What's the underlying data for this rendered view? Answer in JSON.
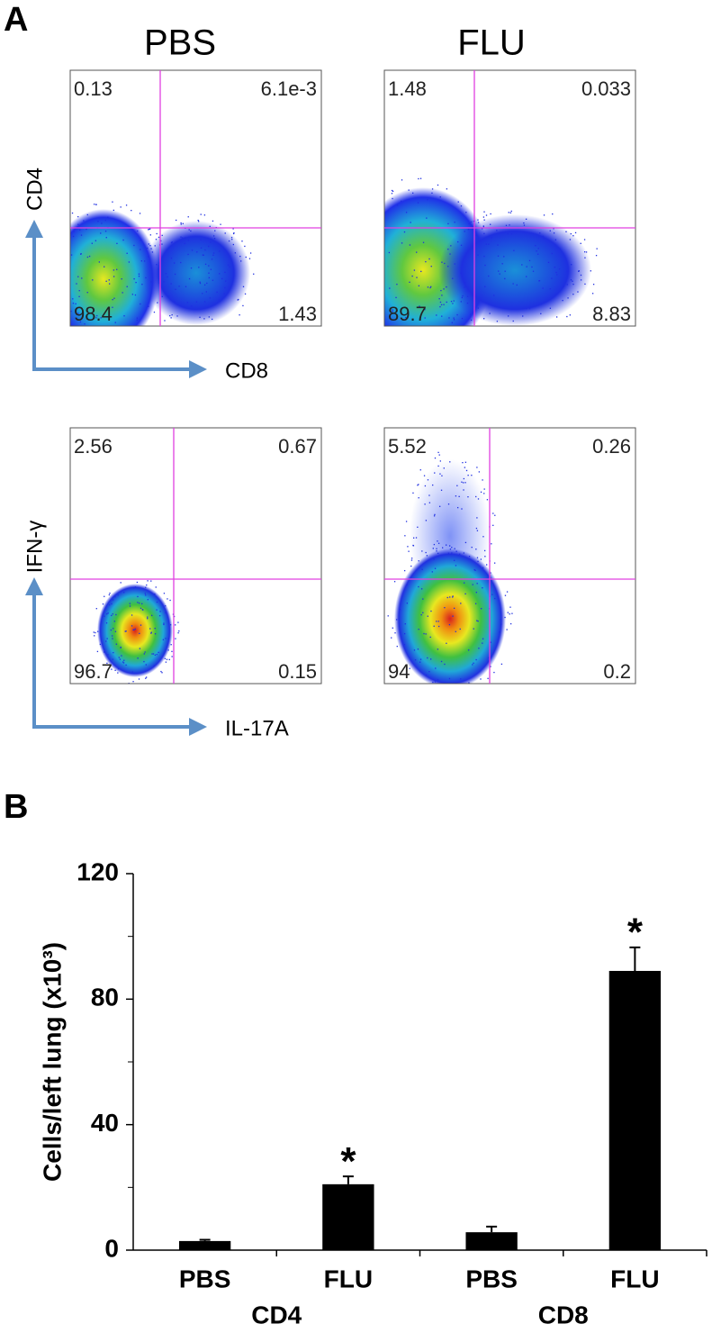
{
  "panel_a": {
    "label": "A",
    "columns": [
      "PBS",
      "FLU"
    ],
    "rows": [
      {
        "y_label": "CD4",
        "x_label": "CD8",
        "plots": [
          {
            "upper_left": "0.13",
            "upper_right": "6.1e-3",
            "lower_left": "98.4",
            "lower_right": "1.43"
          },
          {
            "upper_left": "1.48",
            "upper_right": "0.033",
            "lower_left": "89.7",
            "lower_right": "8.83"
          }
        ]
      },
      {
        "y_label": "IFN-γ",
        "x_label": "IL-17A",
        "plots": [
          {
            "upper_left": "2.56",
            "upper_right": "0.67",
            "lower_left": "96.7",
            "lower_right": "0.15"
          },
          {
            "upper_left": "5.52",
            "upper_right": "0.26",
            "lower_left": "94",
            "lower_right": "0.2"
          }
        ]
      }
    ]
  },
  "panel_b_label": "B",
  "chart_data": {
    "type": "bar",
    "y_label": "Cells/left lung (x10³)",
    "categories": [
      "PBS",
      "FLU",
      "PBS",
      "FLU"
    ],
    "groups": [
      "CD4",
      "CD8"
    ],
    "values": [
      2.9,
      21,
      5.7,
      89
    ],
    "errors": [
      0.4,
      2.5,
      1.8,
      7.5
    ],
    "significance": [
      null,
      "*",
      null,
      "*"
    ],
    "color": "#000000",
    "ylim": [
      0,
      120
    ],
    "yticks": [
      0,
      40,
      80,
      120
    ],
    "minor_yticks": [
      20,
      60,
      100
    ]
  }
}
